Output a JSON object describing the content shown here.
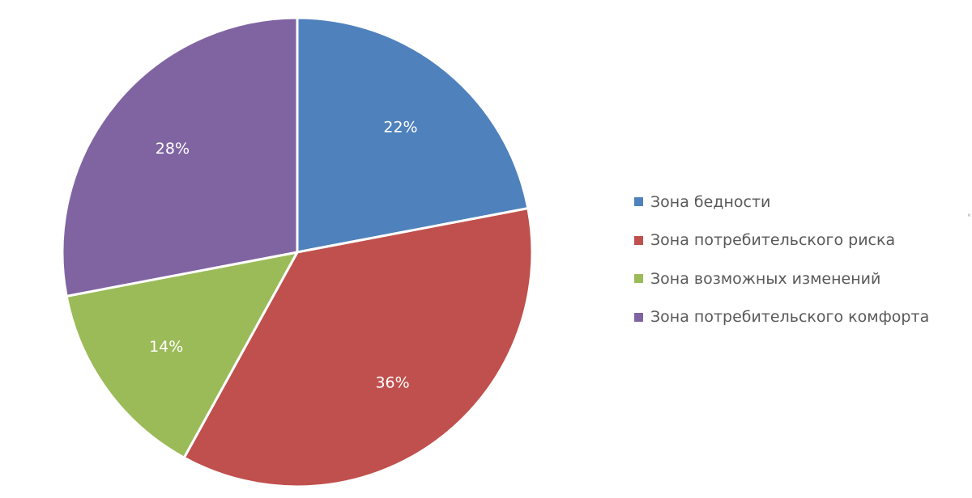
{
  "chart_data": {
    "type": "pie",
    "title": "",
    "start_angle_deg": 0,
    "direction": "clockwise",
    "legend_position": "right",
    "slices": [
      {
        "label": "Зона бедности",
        "value": 22,
        "display": "22%",
        "color": "#4f81bd"
      },
      {
        "label": "Зона потребительского риска",
        "value": 36,
        "display": "36%",
        "color": "#c0504d"
      },
      {
        "label": "Зона возможных изменений",
        "value": 14,
        "display": "14%",
        "color": "#9bbb59"
      },
      {
        "label": "Зона потребительского комфорта",
        "value": 28,
        "display": "28%",
        "color": "#8064a2"
      }
    ]
  }
}
